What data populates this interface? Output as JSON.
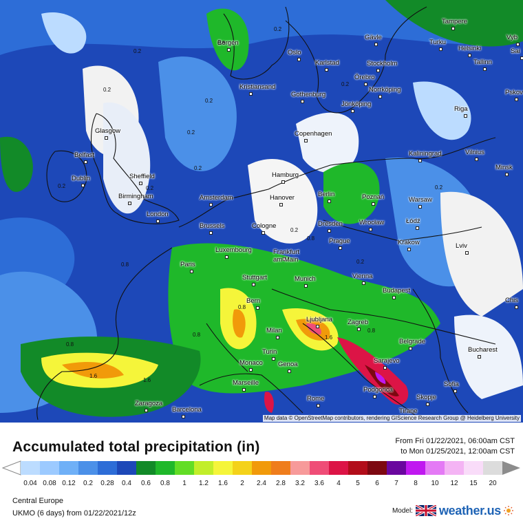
{
  "title": "Accumulated total precipitation (in)",
  "period": {
    "from": "From Fri 01/22/2021, 06:00am CST",
    "to": "to Mon 01/25/2021, 12:00am CST"
  },
  "region": "Central Europe",
  "model_run": "UKMO (6 days) from 01/22/2021/12z",
  "brand": {
    "label": "Model:",
    "name": "weather.us",
    "flag_icon": "uk-flag-icon"
  },
  "attribution": "Map data © OpenStreetMap contributors, rendering GIScience Research Group @ Heidelberg University",
  "legend": {
    "values": [
      "0.04",
      "0.08",
      "0.12",
      "0.2",
      "0.28",
      "0.4",
      "0.6",
      "0.8",
      "1",
      "1.2",
      "1.6",
      "2",
      "2.4",
      "2.8",
      "3.2",
      "3.6",
      "4",
      "5",
      "6",
      "7",
      "8",
      "10",
      "12",
      "15",
      "20"
    ],
    "colors": [
      "#bcdcff",
      "#9ccaff",
      "#6fb0f7",
      "#4b90e8",
      "#2d6dd7",
      "#1d48b8",
      "#128a28",
      "#1fb82a",
      "#62dd25",
      "#c2ee2a",
      "#f5f53a",
      "#f4d21a",
      "#f19a0a",
      "#ef7d1c",
      "#f79a9a",
      "#ef4d77",
      "#dc1446",
      "#b20d1a",
      "#7d0811",
      "#6a079e",
      "#c018f0",
      "#e47af5",
      "#f4b4f4",
      "#f9dcf9",
      "#dcdcdc"
    ],
    "accent": "#8c8c8c"
  },
  "cities": [
    {
      "name": "Bergen"
    },
    {
      "name": "Oslo"
    },
    {
      "name": "Gävle"
    },
    {
      "name": "Tampere"
    },
    {
      "name": "Turku"
    },
    {
      "name": "Helsinki"
    },
    {
      "name": "Vyb"
    },
    {
      "name": "Sai"
    },
    {
      "name": "Karlstad"
    },
    {
      "name": "Stockholm"
    },
    {
      "name": "Tallinn"
    },
    {
      "name": "Örebro"
    },
    {
      "name": "Kristiansand"
    },
    {
      "name": "Norrköping"
    },
    {
      "name": "Gothenburg"
    },
    {
      "name": "Jönköping"
    },
    {
      "name": "Pskov"
    },
    {
      "name": "Riga"
    },
    {
      "name": "Glasgow"
    },
    {
      "name": "Copenhagen"
    },
    {
      "name": "Kaliningrad"
    },
    {
      "name": "Vilnius"
    },
    {
      "name": "Belfast"
    },
    {
      "name": "Minsk"
    },
    {
      "name": "Dublin"
    },
    {
      "name": "Sheffield"
    },
    {
      "name": "Hamburg"
    },
    {
      "name": "Birmingham"
    },
    {
      "name": "Amsterdam"
    },
    {
      "name": "Hanover"
    },
    {
      "name": "Berlin"
    },
    {
      "name": "Poznań"
    },
    {
      "name": "Warsaw"
    },
    {
      "name": "London"
    },
    {
      "name": "Brussels"
    },
    {
      "name": "Cologne"
    },
    {
      "name": "Dresden"
    },
    {
      "name": "Wrocław"
    },
    {
      "name": "Łódź"
    },
    {
      "name": "Prague"
    },
    {
      "name": "Luxembourg"
    },
    {
      "name": "Frankfurt"
    },
    {
      "name": "am Main"
    },
    {
      "name": "Krakow"
    },
    {
      "name": "Lviv"
    },
    {
      "name": "Paris"
    },
    {
      "name": "Stuttgart"
    },
    {
      "name": "Munich"
    },
    {
      "name": "Vienna"
    },
    {
      "name": "Budapest"
    },
    {
      "name": "Bern"
    },
    {
      "name": "Chis"
    },
    {
      "name": "Ljubljana"
    },
    {
      "name": "Zagreb"
    },
    {
      "name": "Milan"
    },
    {
      "name": "Belgrade"
    },
    {
      "name": "Bucharest"
    },
    {
      "name": "Turin"
    },
    {
      "name": "Monaco"
    },
    {
      "name": "Genoa"
    },
    {
      "name": "Sarajevo"
    },
    {
      "name": "Marseille"
    },
    {
      "name": "Podgorica"
    },
    {
      "name": "Sofia"
    },
    {
      "name": "Zaragoza"
    },
    {
      "name": "Rome"
    },
    {
      "name": "Skopje"
    },
    {
      "name": "Barcelona"
    },
    {
      "name": "Tirane"
    }
  ],
  "contour_labels": [
    "0.2",
    "0.8",
    "1.6"
  ]
}
